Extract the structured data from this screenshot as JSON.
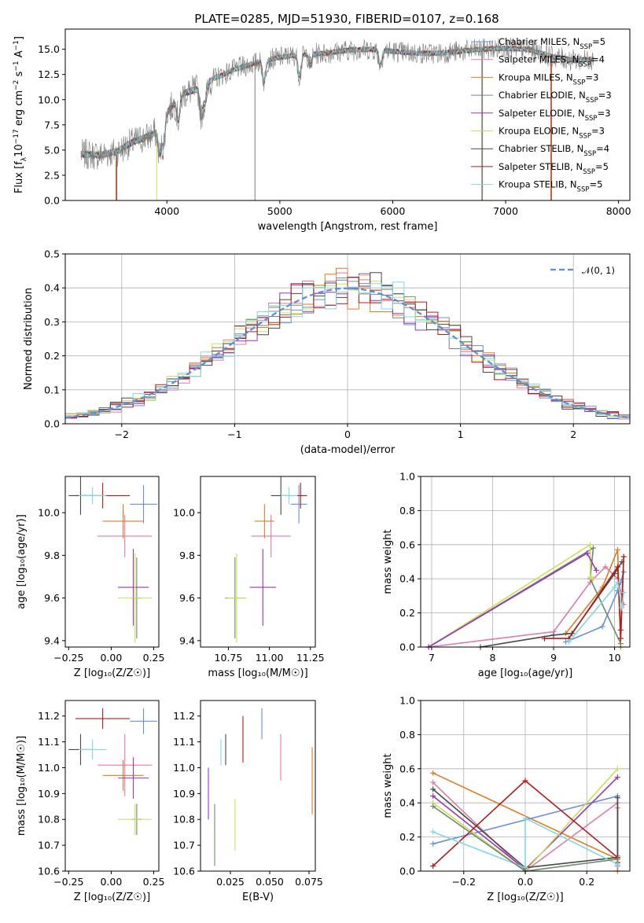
{
  "figure": {
    "title": "PLATE=0285, MJD=51930, FIBERID=0107, z=0.168"
  },
  "palette": {
    "Chabrier MILES": "#6a8fd9",
    "Salpeter MILES": "#e07aa8",
    "Kroupa MILES": "#e07b20",
    "Chabrier ELODIE": "#6e8a6e",
    "Salpeter ELODIE": "#9b35b5",
    "Kroupa ELODIE": "#c8e05a",
    "Chabrier STELIB": "#484848",
    "Salpeter STELIB": "#b01c1c",
    "Kroupa STELIB": "#80d8e0",
    "data": "#7f7f7f",
    "gaussian": "#5b8fd9"
  },
  "chart_data": [
    {
      "panel": "spectrum",
      "type": "line",
      "title": "PLATE=0285, MJD=51930, FIBERID=0107, z=0.168",
      "xlabel": "wavelength [Angstrom, rest frame]",
      "ylabel_parts": [
        "Flux [f",
        "λ",
        "10",
        "−17",
        " erg cm",
        "−2",
        " s",
        "−1",
        " A",
        "−1",
        "]"
      ],
      "xlim": [
        3100,
        8100
      ],
      "ylim": [
        0,
        17
      ],
      "xticks": [
        4000,
        5000,
        6000,
        7000,
        8000
      ],
      "yticks": [
        0.0,
        2.5,
        5.0,
        7.5,
        10.0,
        12.5,
        15.0
      ],
      "continuum": {
        "x": [
          3250,
          3400,
          3550,
          3700,
          3850,
          3950,
          4000,
          4150,
          4300,
          4400,
          4600,
          4800,
          5000,
          5200,
          5400,
          5600,
          5800,
          6000,
          6200,
          6400,
          6600,
          6800,
          7000,
          7200,
          7400,
          7600,
          7750
        ],
        "y": [
          4.6,
          4.5,
          4.8,
          5.8,
          6.4,
          7.2,
          8.8,
          10.6,
          11.2,
          12.0,
          13.0,
          13.7,
          14.2,
          14.5,
          14.6,
          14.9,
          15.0,
          14.8,
          14.6,
          14.6,
          14.8,
          15.0,
          15.1,
          15.0,
          14.3,
          13.9,
          14.0
        ]
      },
      "legend": [
        {
          "label": "Chabrier MILES, N",
          "sub": "SSP",
          "suffix": "=5",
          "n_ssp": 5
        },
        {
          "label": "Salpeter MILES, N",
          "sub": "SSP",
          "suffix": "=4",
          "n_ssp": 4
        },
        {
          "label": "Kroupa MILES, N",
          "sub": "SSP",
          "suffix": "=3",
          "n_ssp": 3
        },
        {
          "label": "Chabrier ELODIE, N",
          "sub": "SSP",
          "suffix": "=3",
          "n_ssp": 3
        },
        {
          "label": "Salpeter ELODIE, N",
          "sub": "SSP",
          "suffix": "=3",
          "n_ssp": 3
        },
        {
          "label": "Kroupa ELODIE, N",
          "sub": "SSP",
          "suffix": "=3",
          "n_ssp": 3
        },
        {
          "label": "Chabrier STELIB, N",
          "sub": "SSP",
          "suffix": "=4",
          "n_ssp": 4
        },
        {
          "label": "Salpeter STELIB, N",
          "sub": "SSP",
          "suffix": "=5",
          "n_ssp": 5
        },
        {
          "label": "Kroupa STELIB, N",
          "sub": "SSP",
          "suffix": "=5",
          "n_ssp": 5
        }
      ],
      "legend_loc": "right"
    },
    {
      "panel": "residuals",
      "type": "histogram",
      "xlabel": "(data-model)/error",
      "ylabel": "Normed distribution",
      "xlim": [
        -2.5,
        2.5
      ],
      "ylim": [
        0,
        0.5
      ],
      "xticks": [
        -2,
        -1,
        0,
        1,
        2
      ],
      "xtick_labels": [
        "−2",
        "−1",
        "0",
        "1",
        "2"
      ],
      "yticks": [
        0.0,
        0.1,
        0.2,
        0.3,
        0.4,
        0.5
      ],
      "bin_width": 0.1,
      "gaussian_label": "𝒩(0, 1)",
      "grid": true,
      "legend_loc": "top-right"
    },
    {
      "panel": "Z-age",
      "type": "errorbar",
      "xlabel": "Z [log₁₀(Z/Z☉)]",
      "ylabel": "age  [log₁₀(age/yr)]",
      "xlim": [
        -0.27,
        0.28
      ],
      "ylim": [
        9.37,
        10.17
      ],
      "xticks": [
        -0.25,
        0.0,
        0.25
      ],
      "xtick_labels": [
        "−0.25",
        "0.00",
        "0.25"
      ],
      "yticks": [
        9.4,
        9.6,
        9.8,
        10.0
      ],
      "points": [
        {
          "model": "Chabrier MILES",
          "x": 0.19,
          "xerr": 0.08,
          "y": 10.04,
          "yerr": 0.09
        },
        {
          "model": "Salpeter MILES",
          "x": 0.08,
          "xerr": 0.16,
          "y": 9.89,
          "yerr": 0.1
        },
        {
          "model": "Kroupa MILES",
          "x": 0.07,
          "xerr": 0.12,
          "y": 9.96,
          "yerr": 0.08
        },
        {
          "model": "Chabrier ELODIE",
          "x": 0.15,
          "xerr": 0.03,
          "y": 9.6,
          "yerr": 0.19
        },
        {
          "model": "Salpeter ELODIE",
          "x": 0.13,
          "xerr": 0.09,
          "y": 9.65,
          "yerr": 0.18
        },
        {
          "model": "Kroupa ELODIE",
          "x": 0.14,
          "xerr": 0.1,
          "y": 9.6,
          "yerr": 0.21
        },
        {
          "model": "Chabrier STELIB",
          "x": -0.18,
          "xerr": 0.07,
          "y": 10.08,
          "yerr": 0.09
        },
        {
          "model": "Salpeter STELIB",
          "x": -0.05,
          "xerr": 0.16,
          "y": 10.08,
          "yerr": 0.06
        },
        {
          "model": "Kroupa STELIB",
          "x": -0.11,
          "xerr": 0.08,
          "y": 10.08,
          "yerr": 0.04
        }
      ]
    },
    {
      "panel": "mass-age",
      "type": "errorbar",
      "xlabel": "mass [log₁₀(M/M☉)]",
      "ylabel": "",
      "xlim": [
        10.58,
        11.28
      ],
      "ylim": [
        9.37,
        10.17
      ],
      "xticks": [
        10.75,
        11.0,
        11.25
      ],
      "xtick_labels": [
        "10.75",
        "11.00",
        "11.25"
      ],
      "yticks": [
        9.4,
        9.6,
        9.8,
        10.0
      ],
      "points": [
        {
          "model": "Chabrier MILES",
          "x": 11.18,
          "xerr": 0.05,
          "y": 10.04,
          "yerr": 0.09
        },
        {
          "model": "Salpeter MILES",
          "x": 11.01,
          "xerr": 0.12,
          "y": 9.89,
          "yerr": 0.1
        },
        {
          "model": "Kroupa MILES",
          "x": 10.97,
          "xerr": 0.06,
          "y": 9.96,
          "yerr": 0.08
        },
        {
          "model": "Chabrier ELODIE",
          "x": 10.79,
          "xerr": 0.06,
          "y": 9.6,
          "yerr": 0.19
        },
        {
          "model": "Salpeter ELODIE",
          "x": 10.96,
          "xerr": 0.08,
          "y": 9.65,
          "yerr": 0.18
        },
        {
          "model": "Kroupa ELODIE",
          "x": 10.8,
          "xerr": 0.06,
          "y": 9.6,
          "yerr": 0.21
        },
        {
          "model": "Chabrier STELIB",
          "x": 11.07,
          "xerr": 0.06,
          "y": 10.08,
          "yerr": 0.09
        },
        {
          "model": "Salpeter STELIB",
          "x": 11.19,
          "xerr": 0.04,
          "y": 10.08,
          "yerr": 0.06
        },
        {
          "model": "Kroupa STELIB",
          "x": 11.12,
          "xerr": 0.05,
          "y": 10.08,
          "yerr": 0.04
        }
      ]
    },
    {
      "panel": "age-weight",
      "type": "line",
      "xlabel": "age  [log₁₀(age/yr)]",
      "ylabel": "mass weight",
      "xlim": [
        6.82,
        10.25
      ],
      "ylim": [
        0,
        1.0
      ],
      "xticks": [
        7,
        8,
        9,
        10
      ],
      "yticks": [
        0.0,
        0.2,
        0.4,
        0.6,
        0.8,
        1.0
      ],
      "grid": true,
      "series": [
        {
          "model": "Salpeter MILES",
          "x": [
            6.95,
            9.0,
            9.6,
            9.85,
            10.05,
            10.15
          ],
          "y": [
            0.0,
            0.09,
            0.38,
            0.47,
            0.4,
            0.25
          ]
        },
        {
          "model": "Chabrier MILES",
          "x": [
            9.2,
            9.8,
            10.05,
            10.1,
            10.15
          ],
          "y": [
            0.03,
            0.12,
            0.33,
            0.38,
            0.44
          ]
        },
        {
          "model": "Kroupa MILES",
          "x": [
            9.2,
            9.8,
            10.05,
            10.1
          ],
          "y": [
            0.08,
            0.35,
            0.57,
            0.0
          ]
        },
        {
          "model": "Chabrier ELODIE",
          "x": [
            6.95,
            9.65,
            9.6,
            10.1
          ],
          "y": [
            0.0,
            0.58,
            0.4,
            0.02
          ]
        },
        {
          "model": "Kroupa ELODIE",
          "x": [
            6.95,
            9.6,
            9.6,
            9.65
          ],
          "y": [
            0.0,
            0.6,
            0.41,
            0.4
          ]
        },
        {
          "model": "Salpeter ELODIE",
          "x": [
            6.95,
            9.55,
            9.7
          ],
          "y": [
            0.0,
            0.55,
            0.45
          ]
        },
        {
          "model": "Chabrier STELIB",
          "x": [
            7.8,
            9.0,
            9.3,
            10.0,
            10.12
          ],
          "y": [
            0.0,
            0.07,
            0.08,
            0.43,
            0.5
          ]
        },
        {
          "model": "Salpeter STELIB",
          "x": [
            8.85,
            9.25,
            10.05,
            10.1,
            10.15,
            10.1
          ],
          "y": [
            0.05,
            0.05,
            0.47,
            0.05,
            0.53,
            0.1
          ]
        },
        {
          "model": "Kroupa STELIB",
          "x": [
            9.25,
            10.0,
            10.05,
            10.12,
            10.15
          ],
          "y": [
            0.03,
            0.35,
            0.38,
            0.23,
            0.32
          ]
        }
      ]
    },
    {
      "panel": "Z-mass",
      "type": "errorbar",
      "xlabel": "Z [log₁₀(Z/Z☉)]",
      "ylabel": "mass [log₁₀(M/M☉)]",
      "xlim": [
        -0.27,
        0.28
      ],
      "ylim": [
        10.6,
        11.26
      ],
      "xticks": [
        -0.25,
        0.0,
        0.25
      ],
      "xtick_labels": [
        "−0.25",
        "0.00",
        "0.25"
      ],
      "yticks": [
        10.6,
        10.7,
        10.8,
        10.9,
        11.0,
        11.1,
        11.2
      ],
      "points": [
        {
          "model": "Chabrier MILES",
          "x": 0.19,
          "xerr": 0.08,
          "y": 11.18,
          "yerr": 0.05
        },
        {
          "model": "Salpeter MILES",
          "x": 0.08,
          "xerr": 0.16,
          "y": 11.01,
          "yerr": 0.12
        },
        {
          "model": "Kroupa MILES",
          "x": 0.07,
          "xerr": 0.12,
          "y": 10.97,
          "yerr": 0.06
        },
        {
          "model": "Chabrier ELODIE",
          "x": 0.15,
          "xerr": 0.03,
          "y": 10.8,
          "yerr": 0.06
        },
        {
          "model": "Salpeter ELODIE",
          "x": 0.13,
          "xerr": 0.09,
          "y": 10.96,
          "yerr": 0.08
        },
        {
          "model": "Kroupa ELODIE",
          "x": 0.14,
          "xerr": 0.1,
          "y": 10.8,
          "yerr": 0.06
        },
        {
          "model": "Chabrier STELIB",
          "x": -0.18,
          "xerr": 0.07,
          "y": 11.07,
          "yerr": 0.06
        },
        {
          "model": "Salpeter STELIB",
          "x": -0.05,
          "xerr": 0.16,
          "y": 11.19,
          "yerr": 0.04
        },
        {
          "model": "Kroupa STELIB",
          "x": -0.11,
          "xerr": 0.08,
          "y": 11.07,
          "yerr": 0.04
        }
      ]
    },
    {
      "panel": "ebv-mass",
      "type": "errorbar",
      "xlabel": "E(B-V)",
      "ylabel": "",
      "xlim": [
        0.006,
        0.079
      ],
      "ylim": [
        10.6,
        11.26
      ],
      "xticks": [
        0.025,
        0.05,
        0.075
      ],
      "xtick_labels": [
        "0.025",
        "0.050",
        "0.075"
      ],
      "yticks": [
        10.6,
        10.7,
        10.8,
        10.9,
        11.0,
        11.1,
        11.2
      ],
      "points": [
        {
          "model": "Chabrier MILES",
          "x": 0.045,
          "xerr": 0,
          "y": 11.17,
          "yerr": 0.06
        },
        {
          "model": "Salpeter MILES",
          "x": 0.057,
          "xerr": 0,
          "y": 11.04,
          "yerr": 0.09
        },
        {
          "model": "Kroupa MILES",
          "x": 0.077,
          "xerr": 0,
          "y": 10.95,
          "yerr": 0.13
        },
        {
          "model": "Chabrier ELODIE",
          "x": 0.015,
          "xerr": 0,
          "y": 10.74,
          "yerr": 0.12
        },
        {
          "model": "Salpeter ELODIE",
          "x": 0.011,
          "xerr": 0,
          "y": 10.9,
          "yerr": 0.1
        },
        {
          "model": "Kroupa ELODIE",
          "x": 0.028,
          "xerr": 0,
          "y": 10.78,
          "yerr": 0.1
        },
        {
          "model": "Chabrier STELIB",
          "x": 0.022,
          "xerr": 0,
          "y": 11.07,
          "yerr": 0.06
        },
        {
          "model": "Salpeter STELIB",
          "x": 0.033,
          "xerr": 0,
          "y": 11.11,
          "yerr": 0.09
        },
        {
          "model": "Kroupa STELIB",
          "x": 0.019,
          "xerr": 0,
          "y": 11.06,
          "yerr": 0.05
        }
      ]
    },
    {
      "panel": "Z-weight",
      "type": "line",
      "xlabel": "Z [log₁₀(Z/Z☉)]",
      "ylabel": "mass weight",
      "xlim": [
        -0.34,
        0.34
      ],
      "ylim": [
        0,
        1.0
      ],
      "xticks": [
        -0.2,
        0.0,
        0.2
      ],
      "xtick_labels": [
        "−0.2",
        "0.0",
        "0.2"
      ],
      "yticks": [
        0.0,
        0.2,
        0.4,
        0.6,
        0.8,
        1.0
      ],
      "grid": true,
      "series": [
        {
          "model": "Kroupa MILES",
          "x": [
            -0.3,
            0.3,
            0.3,
            0.3
          ],
          "y": [
            0.575,
            0.07,
            0.37,
            0.0
          ]
        },
        {
          "model": "Salpeter MILES",
          "x": [
            -0.3,
            0.0,
            0.3,
            0.3
          ],
          "y": [
            0.52,
            0.0,
            0.4,
            0.09
          ]
        },
        {
          "model": "Chabrier MILES",
          "x": [
            -0.3,
            0.3,
            0.3
          ],
          "y": [
            0.16,
            0.44,
            0.03
          ]
        },
        {
          "model": "Salpeter ELODIE",
          "x": [
            -0.3,
            0.0,
            0.3
          ],
          "y": [
            0.44,
            0.01,
            0.55
          ]
        },
        {
          "model": "Kroupa ELODIE",
          "x": [
            -0.3,
            0.0,
            0.3
          ],
          "y": [
            0.4,
            0.0,
            0.6
          ]
        },
        {
          "model": "Chabrier STELIB",
          "x": [
            -0.3,
            0.0,
            0.3,
            0.3
          ],
          "y": [
            0.48,
            0.02,
            0.08,
            0.43
          ]
        },
        {
          "model": "Salpeter STELIB",
          "x": [
            -0.3,
            0.0,
            0.3,
            0.3
          ],
          "y": [
            0.03,
            0.53,
            0.08,
            0.05
          ]
        },
        {
          "model": "Kroupa STELIB",
          "x": [
            -0.3,
            0.0,
            0.0,
            0.3
          ],
          "y": [
            0.23,
            0.02,
            0.31,
            0.04
          ]
        },
        {
          "model": "Chabrier ELODIE",
          "x": [
            -0.3,
            0.0,
            0.3
          ],
          "y": [
            0.38,
            0.0,
            0.07
          ]
        }
      ]
    }
  ]
}
